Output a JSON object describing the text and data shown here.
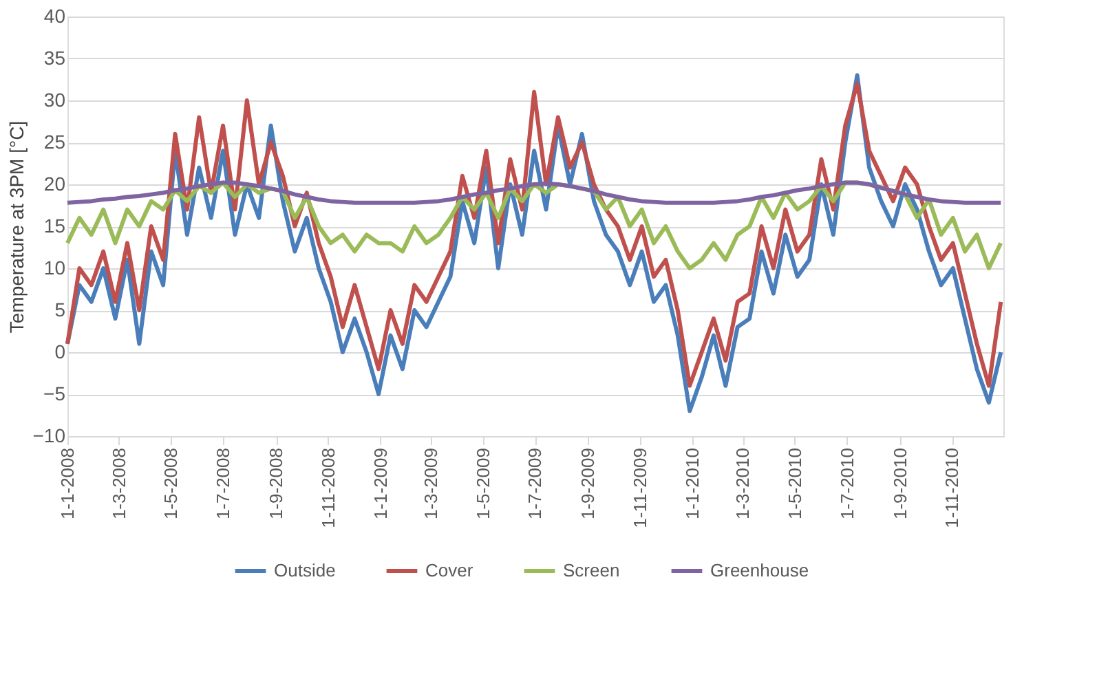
{
  "chart_data": {
    "type": "line",
    "ylabel": "Temperature at 3PM [°C]",
    "x": [
      "2008-01-01",
      "2008-01-15",
      "2008-01-29",
      "2008-02-12",
      "2008-02-26",
      "2008-03-11",
      "2008-03-25",
      "2008-04-08",
      "2008-04-22",
      "2008-05-06",
      "2008-05-20",
      "2008-06-03",
      "2008-06-17",
      "2008-07-01",
      "2008-07-15",
      "2008-07-29",
      "2008-08-12",
      "2008-08-26",
      "2008-09-09",
      "2008-09-23",
      "2008-10-07",
      "2008-10-21",
      "2008-11-04",
      "2008-11-18",
      "2008-12-02",
      "2008-12-16",
      "2008-12-30",
      "2009-01-13",
      "2009-01-27",
      "2009-02-10",
      "2009-02-24",
      "2009-03-10",
      "2009-03-24",
      "2009-04-07",
      "2009-04-21",
      "2009-05-05",
      "2009-05-19",
      "2009-06-02",
      "2009-06-16",
      "2009-06-30",
      "2009-07-14",
      "2009-07-28",
      "2009-08-11",
      "2009-08-25",
      "2009-09-08",
      "2009-09-22",
      "2009-10-06",
      "2009-10-20",
      "2009-11-03",
      "2009-11-17",
      "2009-12-01",
      "2009-12-15",
      "2009-12-29",
      "2010-01-12",
      "2010-01-26",
      "2010-02-09",
      "2010-02-23",
      "2010-03-09",
      "2010-03-23",
      "2010-04-06",
      "2010-04-20",
      "2010-05-04",
      "2010-05-18",
      "2010-06-01",
      "2010-06-15",
      "2010-06-29",
      "2010-07-13",
      "2010-07-27",
      "2010-08-10",
      "2010-08-24",
      "2010-09-07",
      "2010-09-21",
      "2010-10-05",
      "2010-10-19",
      "2010-11-02",
      "2010-11-16",
      "2010-11-30",
      "2010-12-14",
      "2010-12-28"
    ],
    "xlim": [
      "2008-01-01",
      "2010-12-31"
    ],
    "xticks": [
      {
        "value": "2008-01-01",
        "label": "1-1-2008"
      },
      {
        "value": "2008-03-01",
        "label": "1-3-2008"
      },
      {
        "value": "2008-05-01",
        "label": "1-5-2008"
      },
      {
        "value": "2008-07-01",
        "label": "1-7-2008"
      },
      {
        "value": "2008-09-01",
        "label": "1-9-2008"
      },
      {
        "value": "2008-11-01",
        "label": "1-11-2008"
      },
      {
        "value": "2009-01-01",
        "label": "1-1-2009"
      },
      {
        "value": "2009-03-01",
        "label": "1-3-2009"
      },
      {
        "value": "2009-05-01",
        "label": "1-5-2009"
      },
      {
        "value": "2009-07-01",
        "label": "1-7-2009"
      },
      {
        "value": "2009-09-01",
        "label": "1-9-2009"
      },
      {
        "value": "2009-11-01",
        "label": "1-11-2009"
      },
      {
        "value": "2010-01-01",
        "label": "1-1-2010"
      },
      {
        "value": "2010-03-01",
        "label": "1-3-2010"
      },
      {
        "value": "2010-05-01",
        "label": "1-5-2010"
      },
      {
        "value": "2010-07-01",
        "label": "1-7-2010"
      },
      {
        "value": "2010-09-01",
        "label": "1-9-2010"
      },
      {
        "value": "2010-11-01",
        "label": "1-11-2010"
      }
    ],
    "ylim": [
      -10,
      40
    ],
    "yticks": [
      -10,
      -5,
      0,
      5,
      10,
      15,
      20,
      25,
      30,
      35,
      40
    ],
    "grid": "y",
    "legend": "bottom",
    "line_style": "solid",
    "marker": "none",
    "series": [
      {
        "name": "Outside",
        "color": "#4a7ebb",
        "values": [
          1,
          8,
          6,
          10,
          4,
          11,
          1,
          12,
          8,
          24,
          14,
          22,
          16,
          24,
          14,
          20,
          16,
          27,
          18,
          12,
          16,
          10,
          6,
          0,
          4,
          0,
          -5,
          2,
          -2,
          5,
          3,
          6,
          9,
          18,
          13,
          22,
          10,
          20,
          14,
          24,
          17,
          27,
          20,
          26,
          18,
          14,
          12,
          8,
          12,
          6,
          8,
          2,
          -7,
          -3,
          2,
          -4,
          3,
          4,
          12,
          7,
          14,
          9,
          11,
          20,
          14,
          25,
          33,
          22,
          18,
          15,
          20,
          17,
          12,
          8,
          10,
          4,
          -2,
          -6,
          0
        ]
      },
      {
        "name": "Cover",
        "color": "#c0504d",
        "values": [
          1,
          10,
          8,
          12,
          6,
          13,
          5,
          15,
          11,
          26,
          17,
          28,
          19,
          27,
          17,
          30,
          20,
          25,
          21,
          15,
          19,
          13,
          9,
          3,
          8,
          3,
          -2,
          5,
          1,
          8,
          6,
          9,
          12,
          21,
          16,
          24,
          13,
          23,
          17,
          31,
          20,
          28,
          22,
          25,
          20,
          17,
          15,
          11,
          15,
          9,
          11,
          5,
          -4,
          0,
          4,
          -1,
          6,
          7,
          15,
          10,
          17,
          12,
          14,
          23,
          17,
          27,
          32,
          24,
          21,
          18,
          22,
          20,
          15,
          11,
          13,
          7,
          1,
          -4,
          6
        ]
      },
      {
        "name": "Screen",
        "color": "#9bbb59",
        "values": [
          13,
          16,
          14,
          17,
          13,
          17,
          15,
          18,
          17,
          19.3,
          18,
          19.8,
          19,
          20.2,
          18.5,
          20,
          19,
          19.5,
          19.2,
          16,
          18.5,
          15,
          13,
          14,
          12,
          14,
          13,
          13,
          12,
          15,
          13,
          14,
          16,
          18.5,
          17,
          19,
          16,
          19.5,
          18,
          20,
          19,
          20,
          19.8,
          19.5,
          19.2,
          17,
          18.5,
          15,
          17,
          13,
          15,
          12,
          10,
          11,
          13,
          11,
          14,
          15,
          18.5,
          16,
          19,
          17,
          18,
          19.8,
          18,
          20.2,
          20.2,
          20,
          19.6,
          19.2,
          18.8,
          16,
          18.2,
          14,
          16,
          12,
          14,
          10,
          13
        ]
      },
      {
        "name": "Greenhouse",
        "color": "#8064a2",
        "values": [
          17.8,
          17.9,
          18,
          18.2,
          18.3,
          18.5,
          18.6,
          18.8,
          19,
          19.3,
          19.5,
          19.8,
          20,
          20.2,
          20.2,
          20,
          19.8,
          19.5,
          19.2,
          18.8,
          18.5,
          18.2,
          18,
          17.9,
          17.8,
          17.8,
          17.8,
          17.8,
          17.8,
          17.8,
          17.9,
          18,
          18.2,
          18.5,
          18.8,
          19,
          19.3,
          19.5,
          19.8,
          20,
          20.1,
          20,
          19.8,
          19.5,
          19.2,
          18.8,
          18.5,
          18.2,
          18,
          17.9,
          17.8,
          17.8,
          17.8,
          17.8,
          17.8,
          17.9,
          18,
          18.2,
          18.5,
          18.7,
          19,
          19.3,
          19.5,
          19.8,
          20,
          20.2,
          20.2,
          20,
          19.6,
          19.2,
          18.8,
          18.5,
          18.2,
          18,
          17.9,
          17.8,
          17.8,
          17.8,
          17.8
        ]
      }
    ]
  }
}
